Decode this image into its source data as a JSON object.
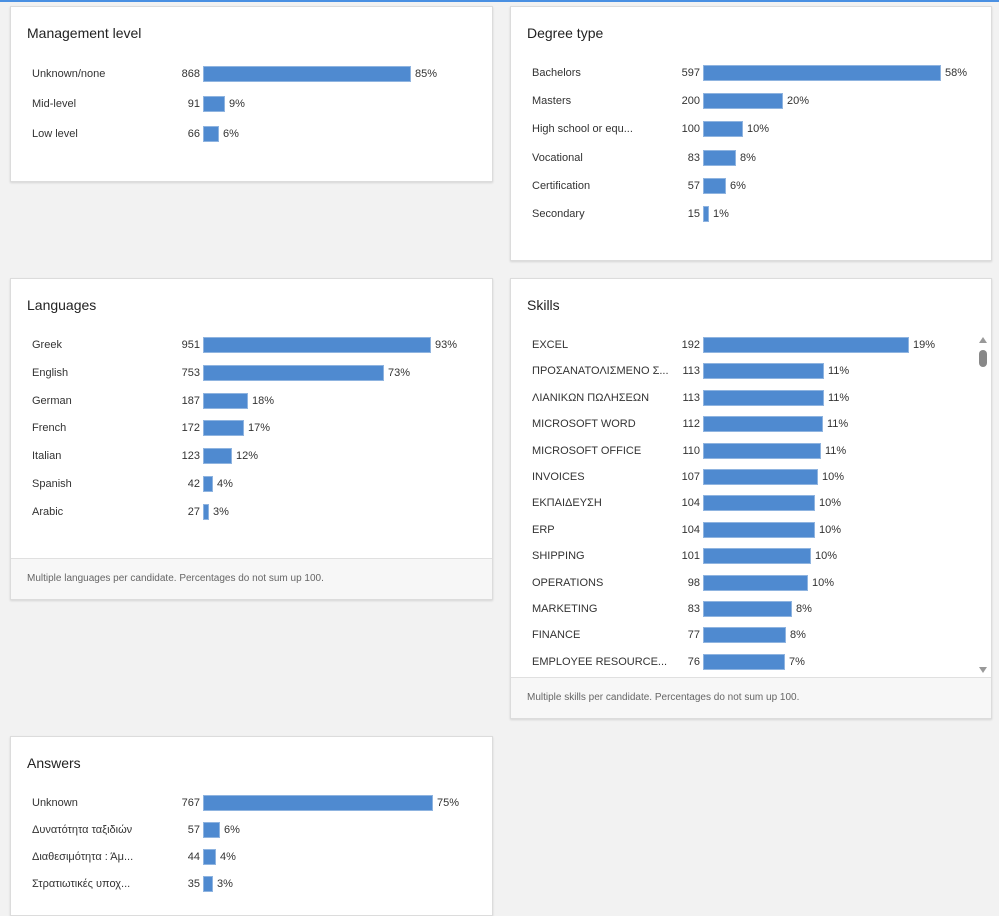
{
  "colors": {
    "bar": "#4f8ad0",
    "accent": "#4a90e2"
  },
  "cards": {
    "management": {
      "title": "Management level",
      "rows": [
        {
          "label": "Unknown/none",
          "count": 868,
          "pct": "85%"
        },
        {
          "label": "Mid-level",
          "count": 91,
          "pct": "9%"
        },
        {
          "label": "Low level",
          "count": 66,
          "pct": "6%"
        }
      ]
    },
    "degree": {
      "title": "Degree type",
      "rows": [
        {
          "label": "Bachelors",
          "count": 597,
          "pct": "58%"
        },
        {
          "label": "Masters",
          "count": 200,
          "pct": "20%"
        },
        {
          "label": "High school or equ...",
          "count": 100,
          "pct": "10%"
        },
        {
          "label": "Vocational",
          "count": 83,
          "pct": "8%"
        },
        {
          "label": "Certification",
          "count": 57,
          "pct": "6%"
        },
        {
          "label": "Secondary",
          "count": 15,
          "pct": "1%"
        }
      ]
    },
    "languages": {
      "title": "Languages",
      "footer": "Multiple languages per candidate. Percentages do not sum up 100.",
      "rows": [
        {
          "label": "Greek",
          "count": 951,
          "pct": "93%"
        },
        {
          "label": "English",
          "count": 753,
          "pct": "73%"
        },
        {
          "label": "German",
          "count": 187,
          "pct": "18%"
        },
        {
          "label": "French",
          "count": 172,
          "pct": "17%"
        },
        {
          "label": "Italian",
          "count": 123,
          "pct": "12%"
        },
        {
          "label": "Spanish",
          "count": 42,
          "pct": "4%"
        },
        {
          "label": "Arabic",
          "count": 27,
          "pct": "3%"
        }
      ]
    },
    "skills": {
      "title": "Skills",
      "footer": "Multiple skills per candidate. Percentages do not sum up 100.",
      "rows": [
        {
          "label": "EXCEL",
          "count": 192,
          "pct": "19%"
        },
        {
          "label": "ΠΡΟΣΑΝΑΤΟΛΙΣΜΕΝΟ Σ...",
          "count": 113,
          "pct": "11%"
        },
        {
          "label": "ΛΙΑΝΙΚΩΝ ΠΩΛΗΣΕΩΝ",
          "count": 113,
          "pct": "11%"
        },
        {
          "label": "MICROSOFT WORD",
          "count": 112,
          "pct": "11%"
        },
        {
          "label": "MICROSOFT OFFICE",
          "count": 110,
          "pct": "11%"
        },
        {
          "label": "INVOICES",
          "count": 107,
          "pct": "10%"
        },
        {
          "label": "ΕΚΠΑΙΔΕΥΣΗ",
          "count": 104,
          "pct": "10%"
        },
        {
          "label": "ERP",
          "count": 104,
          "pct": "10%"
        },
        {
          "label": "SHIPPING",
          "count": 101,
          "pct": "10%"
        },
        {
          "label": "OPERATIONS",
          "count": 98,
          "pct": "10%"
        },
        {
          "label": "MARKETING",
          "count": 83,
          "pct": "8%"
        },
        {
          "label": "FINANCE",
          "count": 77,
          "pct": "8%"
        },
        {
          "label": "EMPLOYEE RESOURCE...",
          "count": 76,
          "pct": "7%"
        }
      ]
    },
    "answers": {
      "title": "Answers",
      "rows": [
        {
          "label": "Unknown",
          "count": 767,
          "pct": "75%"
        },
        {
          "label": "Δυνατότητα ταξιδιών",
          "count": 57,
          "pct": "6%"
        },
        {
          "label": "Διαθεσιμότητα : Άμ...",
          "count": 44,
          "pct": "4%"
        },
        {
          "label": "Στρατιωτικές υποχ...",
          "count": 35,
          "pct": "3%"
        }
      ]
    }
  }
}
